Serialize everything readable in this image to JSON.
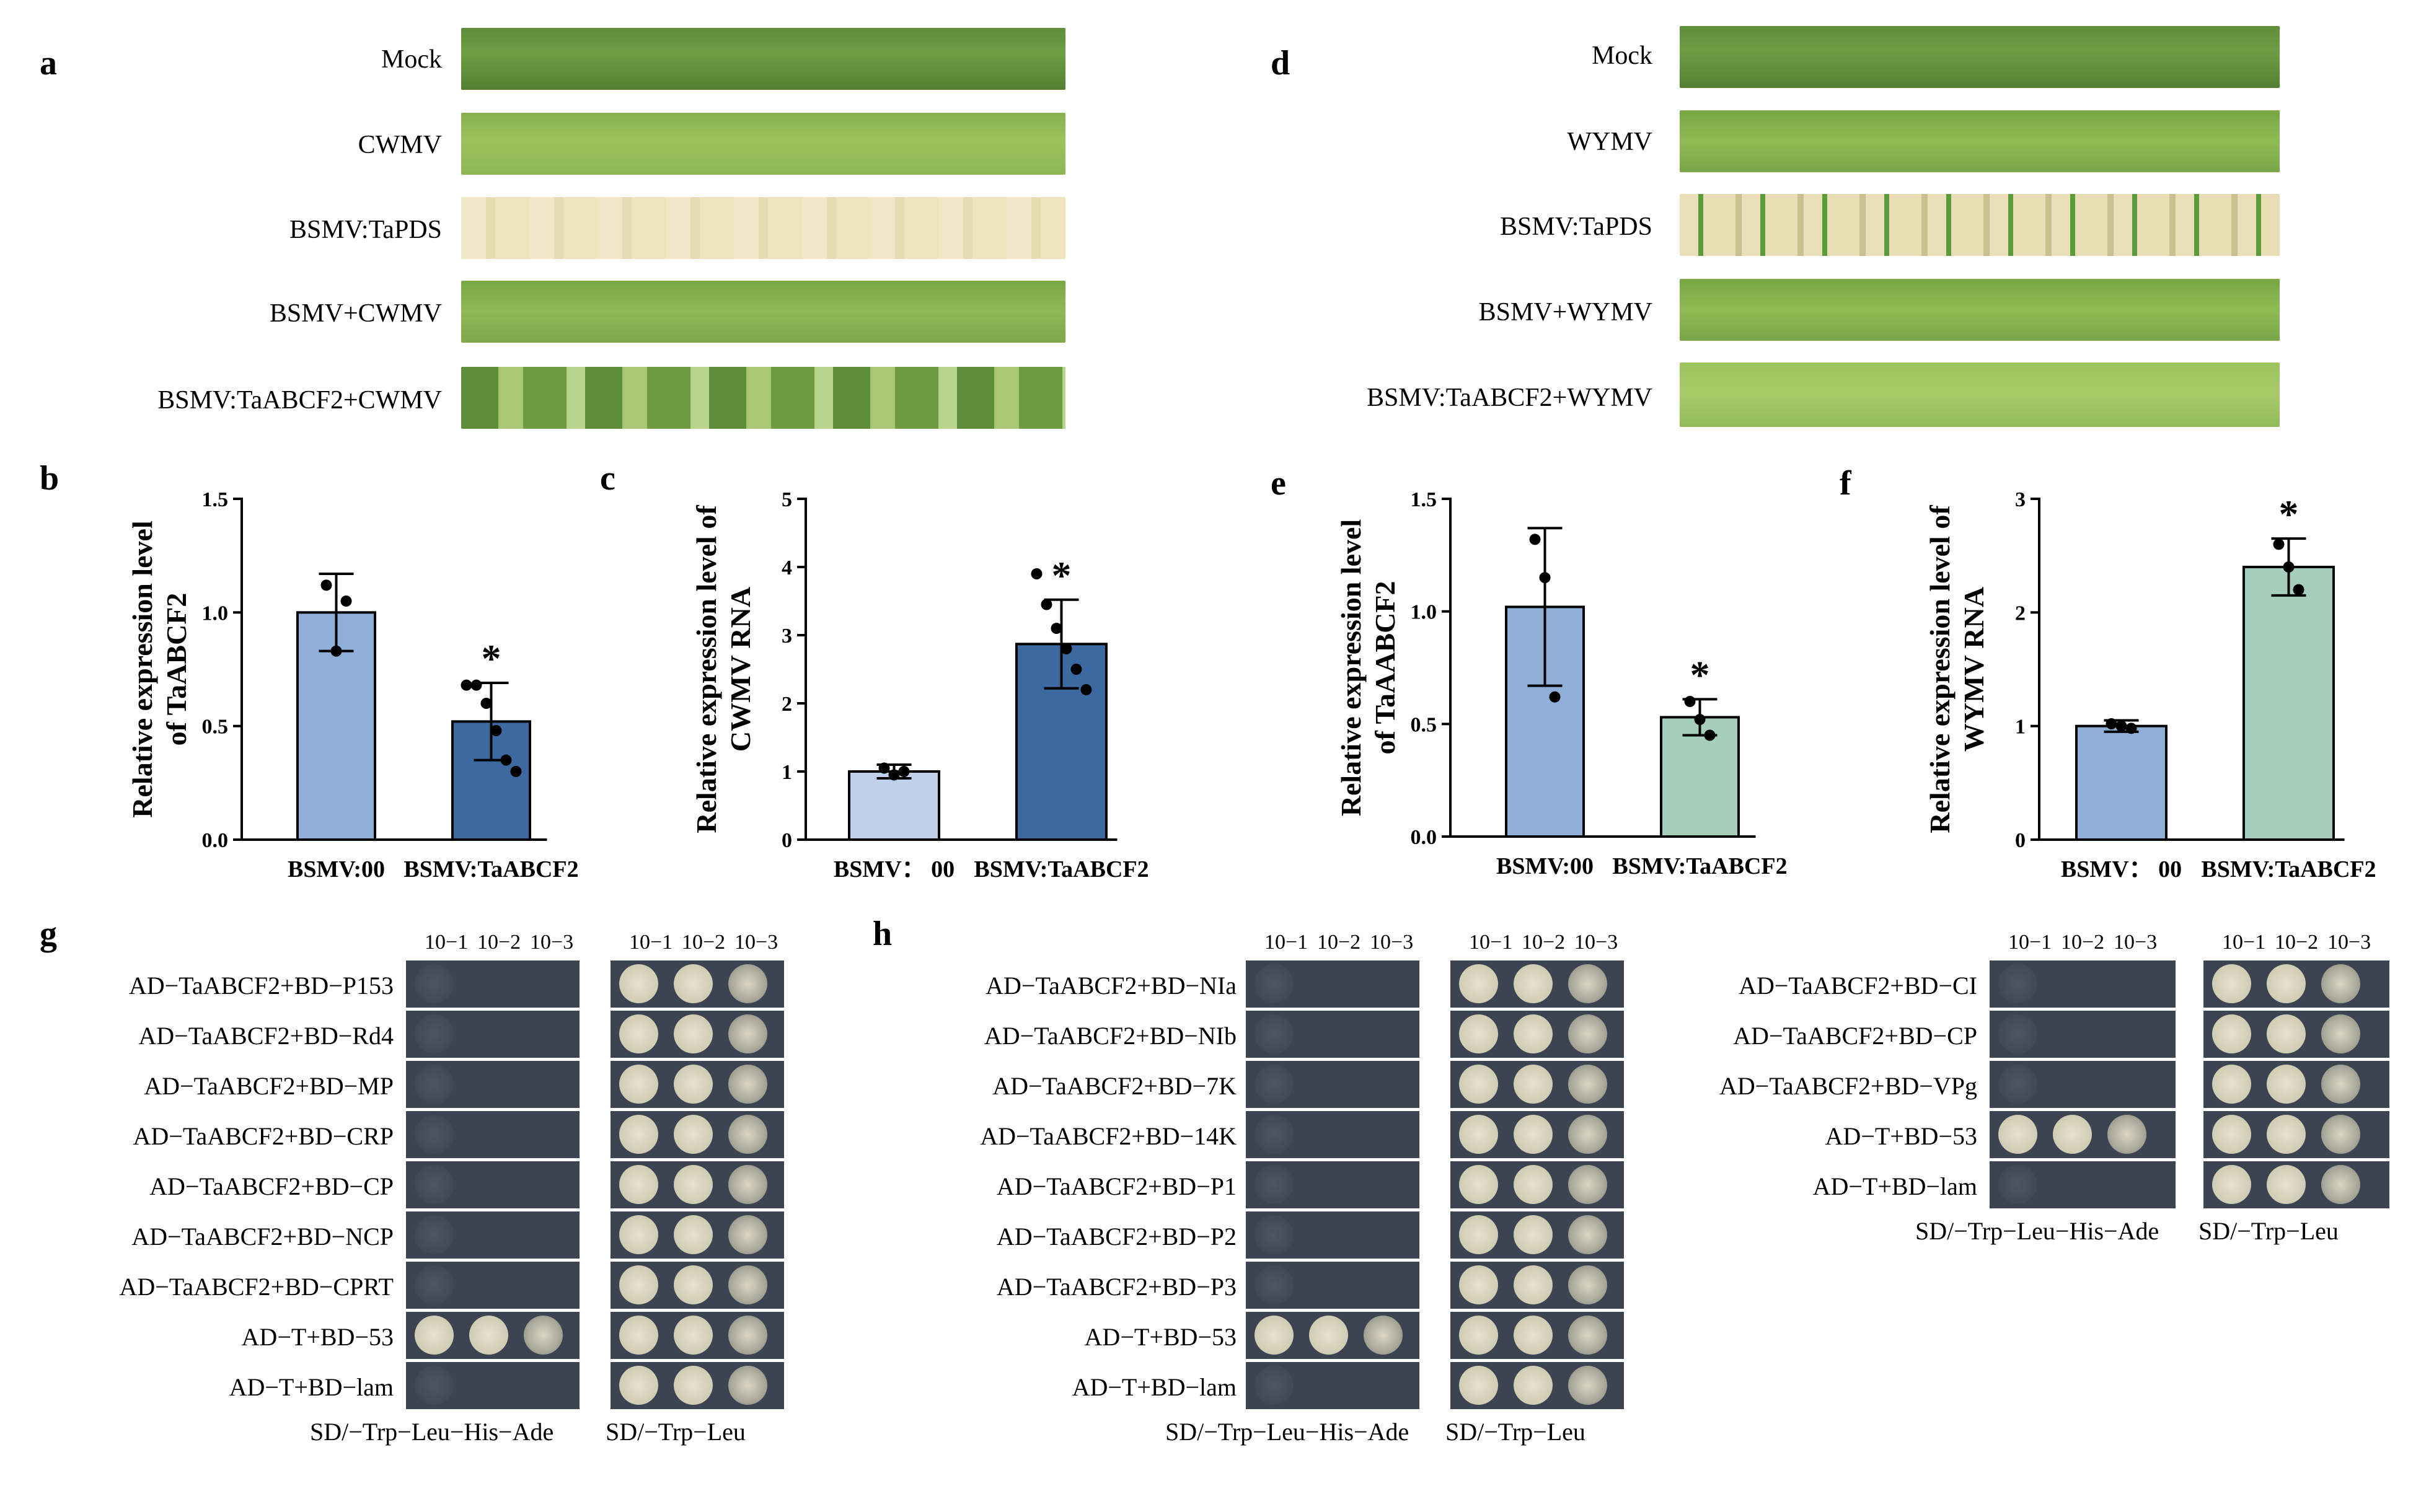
{
  "panels": {
    "a": "a",
    "b": "b",
    "c": "c",
    "d": "d",
    "e": "e",
    "f": "f",
    "g": "g",
    "h": "h"
  },
  "leaf_panel_a": {
    "labels": [
      "Mock",
      "CWMV",
      "BSMV:TaPDS",
      "BSMV+CWMV",
      "BSMV:TaABCF2+CWMV"
    ]
  },
  "leaf_panel_d": {
    "labels": [
      "Mock",
      "WYMV",
      "BSMV:TaPDS",
      "BSMV+WYMV",
      "BSMV:TaABCF2+WYMV"
    ]
  },
  "chart_data": [
    {
      "id": "b",
      "type": "bar",
      "ylabel_line1": "Relative expression level",
      "ylabel_line2": "of TaABCF2",
      "categories": [
        "BSMV:00",
        "BSMV:TaABCF2"
      ],
      "values": [
        1.0,
        0.52
      ],
      "errors": [
        0.17,
        0.17
      ],
      "points": [
        [
          1.12,
          0.83,
          1.05
        ],
        [
          0.68,
          0.68,
          0.6,
          0.48,
          0.35,
          0.3
        ]
      ],
      "ylim": [
        0,
        1.5
      ],
      "yticks": [
        "0.0",
        "0.5",
        "1.0",
        "1.5"
      ],
      "ytick_values": [
        0,
        0.5,
        1.0,
        1.5
      ],
      "colors": [
        "#8faed8",
        "#3c69a0"
      ],
      "significance": [
        "",
        "*"
      ]
    },
    {
      "id": "c",
      "type": "bar",
      "ylabel_line1": "Relative expression level of",
      "ylabel_line2": "CWMV RNA",
      "categories": [
        "BSMV： 00",
        "BSMV:TaABCF2"
      ],
      "values": [
        1.0,
        2.87
      ],
      "errors": [
        0.1,
        0.65
      ],
      "points": [
        [
          1.05,
          0.95,
          1.0
        ],
        [
          3.9,
          3.45,
          3.1,
          2.8,
          2.5,
          2.2
        ]
      ],
      "ylim": [
        0,
        5
      ],
      "yticks": [
        "0",
        "1",
        "2",
        "3",
        "4",
        "5"
      ],
      "ytick_values": [
        0,
        1,
        2,
        3,
        4,
        5
      ],
      "colors": [
        "#bfd0ea",
        "#3c69a0"
      ],
      "significance": [
        "",
        "*"
      ]
    },
    {
      "id": "e",
      "type": "bar",
      "ylabel_line1": "Relative expression level",
      "ylabel_line2": "of TaAABCF2",
      "categories": [
        "BSMV:00",
        "BSMV:TaABCF2"
      ],
      "values": [
        1.02,
        0.53
      ],
      "errors": [
        0.35,
        0.08
      ],
      "points": [
        [
          1.32,
          1.15,
          0.62
        ],
        [
          0.6,
          0.52,
          0.45
        ]
      ],
      "ylim": [
        0,
        1.5
      ],
      "yticks": [
        "0.0",
        "0.5",
        "1.0",
        "1.5"
      ],
      "ytick_values": [
        0,
        0.5,
        1.0,
        1.5
      ],
      "colors": [
        "#8faed8",
        "#a5cfbc"
      ],
      "significance": [
        "",
        "*"
      ]
    },
    {
      "id": "f",
      "type": "bar",
      "ylabel_line1": "Relative expression level of",
      "ylabel_line2": "WYMV RNA",
      "categories": [
        "BSMV： 00",
        "BSMV:TaABCF2"
      ],
      "values": [
        1.0,
        2.4
      ],
      "errors": [
        0.05,
        0.25
      ],
      "points": [
        [
          1.02,
          1.0,
          0.98
        ],
        [
          2.6,
          2.4,
          2.2
        ]
      ],
      "ylim": [
        0,
        3
      ],
      "yticks": [
        "0",
        "1",
        "2",
        "3"
      ],
      "ytick_values": [
        0,
        1,
        2,
        3
      ],
      "colors": [
        "#8faed8",
        "#a5cfbc"
      ],
      "significance": [
        "",
        "*"
      ]
    }
  ],
  "yeast": {
    "dilutions": [
      "10−1",
      "10−2",
      "10−3"
    ],
    "media": [
      "SD/−Trp−Leu−His−Ade",
      "SD/−Trp−Leu"
    ],
    "panel_g_rows": [
      "AD−TaABCF2+BD−P153",
      "AD−TaABCF2+BD−Rd4",
      "AD−TaABCF2+BD−MP",
      "AD−TaABCF2+BD−CRP",
      "AD−TaABCF2+BD−CP",
      "AD−TaABCF2+BD−NCP",
      "AD−TaABCF2+BD−CPRT",
      "AD−T+BD−53",
      "AD−T+BD−lam"
    ],
    "panel_h_rows": [
      "AD−TaABCF2+BD−NIa",
      "AD−TaABCF2+BD−NIb",
      "AD−TaABCF2+BD−7K",
      "AD−TaABCF2+BD−14K",
      "AD−TaABCF2+BD−P1",
      "AD−TaABCF2+BD−P2",
      "AD−TaABCF2+BD−P3",
      "AD−T+BD−53",
      "AD−T+BD−lam"
    ],
    "panel_h2_rows": [
      "AD−TaABCF2+BD−CI",
      "AD−TaABCF2+BD−CP",
      "AD−TaABCF2+BD−VPg",
      "AD−T+BD−53",
      "AD−T+BD−lam"
    ]
  }
}
